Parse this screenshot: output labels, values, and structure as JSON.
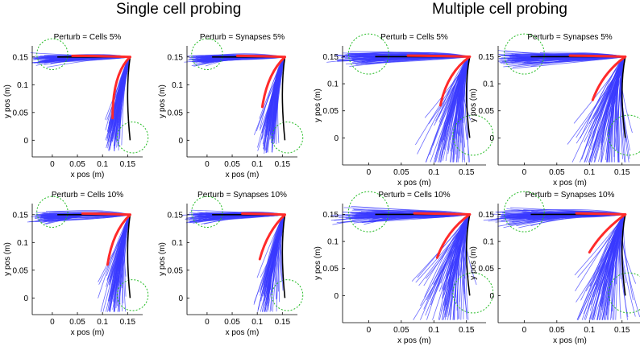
{
  "sections": {
    "left_title": "Single cell probing",
    "right_title": "Multiple cell probing"
  },
  "colors": {
    "trajectories": "#3a3aff",
    "mean_path": "#ff2a2a",
    "target_path": "#000000",
    "target_circle": "#22bb22"
  },
  "chart_data": [
    {
      "type": "line",
      "section": "Single cell probing",
      "title": "Perturb = Cells 5%",
      "xlabel": "x pos (m)",
      "ylabel": "y pos (m)",
      "xticks": [
        "0",
        "0.05",
        "0.1",
        "0.15"
      ],
      "yticks": [
        "0",
        "0.05",
        "0.1",
        "0.15"
      ],
      "xlim": [
        -0.04,
        0.18
      ],
      "ylim": [
        -0.03,
        0.17
      ],
      "n_trials": 70,
      "spread": 1.0,
      "downward_spread": 1.0,
      "mean_lag": 0.0,
      "targets": [
        [
          0,
          0.155
        ],
        [
          0.16,
          0.005
        ]
      ],
      "center": [
        0.155,
        0.15
      ]
    },
    {
      "type": "line",
      "section": "Single cell probing",
      "title": "Perturb = Synapses 5%",
      "xlabel": "x pos (m)",
      "ylabel": "y pos (m)",
      "xticks": [
        "0",
        "0.05",
        "0.1",
        "0.15"
      ],
      "yticks": [
        "0",
        "0.05",
        "0.1",
        "0.15"
      ],
      "xlim": [
        -0.04,
        0.18
      ],
      "ylim": [
        -0.03,
        0.17
      ],
      "n_trials": 70,
      "spread": 1.0,
      "downward_spread": 1.1,
      "mean_lag": 0.02,
      "targets": [
        [
          0,
          0.155
        ],
        [
          0.16,
          0.005
        ]
      ],
      "center": [
        0.155,
        0.15
      ]
    },
    {
      "type": "line",
      "section": "Single cell probing",
      "title": "Perturb = Cells 10%",
      "xlabel": "x pos (m)",
      "ylabel": "y pos (m)",
      "xticks": [
        "0",
        "0.05",
        "0.1",
        "0.15"
      ],
      "yticks": [
        "0",
        "0.05",
        "0.1",
        "0.15"
      ],
      "xlim": [
        -0.04,
        0.18
      ],
      "ylim": [
        -0.03,
        0.17
      ],
      "n_trials": 70,
      "spread": 1.1,
      "downward_spread": 1.3,
      "mean_lag": 0.02,
      "targets": [
        [
          0,
          0.155
        ],
        [
          0.16,
          0.005
        ]
      ],
      "center": [
        0.155,
        0.15
      ]
    },
    {
      "type": "line",
      "section": "Single cell probing",
      "title": "Perturb = Synapses 10%",
      "xlabel": "x pos (m)",
      "ylabel": "y pos (m)",
      "xticks": [
        "0",
        "0.05",
        "0.1",
        "0.15"
      ],
      "yticks": [
        "0",
        "0.05",
        "0.1",
        "0.15"
      ],
      "xlim": [
        -0.04,
        0.18
      ],
      "ylim": [
        -0.03,
        0.17
      ],
      "n_trials": 70,
      "spread": 1.1,
      "downward_spread": 1.3,
      "mean_lag": 0.03,
      "targets": [
        [
          0,
          0.155
        ],
        [
          0.16,
          0.005
        ]
      ],
      "center": [
        0.155,
        0.15
      ]
    },
    {
      "type": "line",
      "section": "Multiple cell probing",
      "title": "Perturb = Cells 5%",
      "xlabel": "x pos (m)",
      "ylabel": "y pos (m)",
      "xticks": [
        "0",
        "0.05",
        "0.1",
        "0.15"
      ],
      "yticks": [
        "0",
        "0.05",
        "0.1",
        "0.15"
      ],
      "xlim": [
        -0.04,
        0.18
      ],
      "ylim": [
        -0.05,
        0.17
      ],
      "n_trials": 80,
      "spread": 1.4,
      "downward_spread": 1.9,
      "mean_lag": 0.02,
      "targets": [
        [
          0,
          0.155
        ],
        [
          0.16,
          0.005
        ]
      ],
      "center": [
        0.155,
        0.15
      ]
    },
    {
      "type": "line",
      "section": "Multiple cell probing",
      "title": "Perturb = Synapses 5%",
      "xlabel": "x pos (m)",
      "ylabel": "y pos (m)",
      "xticks": [
        "0",
        "0.05",
        "0.1",
        "0.15"
      ],
      "yticks": [
        "0",
        "0.05",
        "0.1",
        "0.15"
      ],
      "xlim": [
        -0.04,
        0.18
      ],
      "ylim": [
        -0.05,
        0.17
      ],
      "n_trials": 80,
      "spread": 1.4,
      "downward_spread": 2.1,
      "mean_lag": 0.03,
      "targets": [
        [
          0,
          0.155
        ],
        [
          0.16,
          0.005
        ]
      ],
      "center": [
        0.155,
        0.15
      ]
    },
    {
      "type": "line",
      "section": "Multiple cell probing",
      "title": "Perturb = Cells 10%",
      "xlabel": "x pos (m)",
      "ylabel": "y pos (m)",
      "xticks": [
        "0",
        "0.05",
        "0.1",
        "0.15"
      ],
      "yticks": [
        "0",
        "0.05",
        "0.1",
        "0.15"
      ],
      "xlim": [
        -0.04,
        0.18
      ],
      "ylim": [
        -0.05,
        0.17
      ],
      "n_trials": 80,
      "spread": 1.5,
      "downward_spread": 2.2,
      "mean_lag": 0.03,
      "targets": [
        [
          0,
          0.155
        ],
        [
          0.16,
          0.005
        ]
      ],
      "center": [
        0.155,
        0.15
      ]
    },
    {
      "type": "line",
      "section": "Multiple cell probing",
      "title": "Perturb = Synapses 10%",
      "xlabel": "x pos (m)",
      "ylabel": "y pos (m)",
      "xticks": [
        "0",
        "0.05",
        "0.1",
        "0.15"
      ],
      "yticks": [
        "0",
        "0.05",
        "0.1",
        "0.15"
      ],
      "xlim": [
        -0.04,
        0.18
      ],
      "ylim": [
        -0.05,
        0.17
      ],
      "n_trials": 80,
      "spread": 1.6,
      "downward_spread": 2.3,
      "mean_lag": 0.04,
      "targets": [
        [
          0,
          0.155
        ],
        [
          0.16,
          0.005
        ]
      ],
      "center": [
        0.155,
        0.15
      ]
    }
  ]
}
